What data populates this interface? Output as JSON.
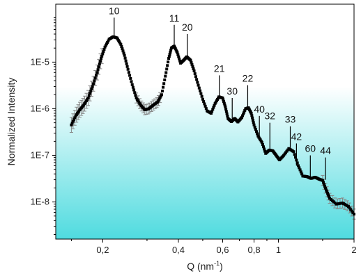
{
  "chart_data": {
    "type": "scatter",
    "title": "",
    "xlabel": "Q (nm",
    "xlabel_sup": "-1",
    "xlabel_close": ")",
    "ylabel": "Normalized Intensity",
    "x_scale": "log",
    "y_scale": "log",
    "xlim": [
      0.13,
      2.0
    ],
    "ylim": [
      1.6e-09,
      0.000175
    ],
    "background_gradient": {
      "top": "#ffffff",
      "bottom": "#4fdbdf"
    },
    "marker_color": "#000000",
    "errorbar_color": "#888888",
    "x_ticks": [
      {
        "value": 0.2,
        "label": "0,2"
      },
      {
        "value": 0.4,
        "label": "0,4"
      },
      {
        "value": 0.6,
        "label": "0,6"
      },
      {
        "value": 0.8,
        "label": "0,8"
      },
      {
        "value": 1.0,
        "label": "1"
      },
      {
        "value": 2.0,
        "label": "2"
      }
    ],
    "y_ticks": [
      {
        "value": 1e-05,
        "label": "1E-5"
      },
      {
        "value": 1e-06,
        "label": "1E-6"
      },
      {
        "value": 1e-07,
        "label": "1E-7"
      },
      {
        "value": 1e-08,
        "label": "1E-8"
      }
    ],
    "curve_points": [
      [
        0.15,
        4.5e-07
      ],
      [
        0.156,
        7e-07
      ],
      [
        0.162,
        9.5e-07
      ],
      [
        0.168,
        1.2e-06
      ],
      [
        0.175,
        1.7e-06
      ],
      [
        0.182,
        3e-06
      ],
      [
        0.19,
        6e-06
      ],
      [
        0.197,
        1.2e-05
      ],
      [
        0.204,
        2.1e-05
      ],
      [
        0.212,
        3.1e-05
      ],
      [
        0.22,
        3.5e-05
      ],
      [
        0.228,
        3.3e-05
      ],
      [
        0.236,
        2.4e-05
      ],
      [
        0.244,
        1.4e-05
      ],
      [
        0.252,
        7e-06
      ],
      [
        0.262,
        3.3e-06
      ],
      [
        0.272,
        1.7e-06
      ],
      [
        0.283,
        1.2e-06
      ],
      [
        0.294,
        9.5e-07
      ],
      [
        0.305,
        1e-06
      ],
      [
        0.318,
        1.2e-06
      ],
      [
        0.331,
        1.4e-06
      ],
      [
        0.343,
        2e-06
      ],
      [
        0.355,
        5e-06
      ],
      [
        0.366,
        1.2e-05
      ],
      [
        0.375,
        2e-05
      ],
      [
        0.385,
        2.2e-05
      ],
      [
        0.396,
        1.6e-05
      ],
      [
        0.408,
        9.5e-06
      ],
      [
        0.42,
        1.1e-05
      ],
      [
        0.432,
        1.3e-05
      ],
      [
        0.447,
        1.1e-05
      ],
      [
        0.462,
        6.5e-06
      ],
      [
        0.48,
        3.2e-06
      ],
      [
        0.5,
        1.6e-06
      ],
      [
        0.52,
        9e-07
      ],
      [
        0.54,
        8e-07
      ],
      [
        0.56,
        1.3e-06
      ],
      [
        0.58,
        1.8e-06
      ],
      [
        0.6,
        1.7e-06
      ],
      [
        0.615,
        1.1e-06
      ],
      [
        0.63,
        6.2e-07
      ],
      [
        0.65,
        5.3e-07
      ],
      [
        0.67,
        6.2e-07
      ],
      [
        0.69,
        5.2e-07
      ],
      [
        0.715,
        6.5e-07
      ],
      [
        0.74,
        1e-06
      ],
      [
        0.76,
        1.05e-06
      ],
      [
        0.78,
        8e-07
      ],
      [
        0.8,
        4.5e-07
      ],
      [
        0.83,
        2.6e-07
      ],
      [
        0.86,
        1.9e-07
      ],
      [
        0.89,
        1.1e-07
      ],
      [
        0.92,
        1.3e-07
      ],
      [
        0.95,
        1.25e-07
      ],
      [
        0.98,
        1e-07
      ],
      [
        1.01,
        8e-08
      ],
      [
        1.05,
        1e-07
      ],
      [
        1.1,
        1.4e-07
      ],
      [
        1.15,
        1.2e-07
      ],
      [
        1.2,
        6e-08
      ],
      [
        1.25,
        3.6e-08
      ],
      [
        1.3,
        3.5e-08
      ],
      [
        1.35,
        3.2e-08
      ],
      [
        1.4,
        3.4e-08
      ],
      [
        1.45,
        3.1e-08
      ],
      [
        1.5,
        2.9e-08
      ],
      [
        1.55,
        1.8e-08
      ],
      [
        1.6,
        1.2e-08
      ],
      [
        1.7,
        9e-09
      ],
      [
        1.8,
        9.5e-09
      ],
      [
        1.9,
        8e-09
      ],
      [
        2.0,
        5.5e-09
      ]
    ],
    "peaks": [
      {
        "label": "10",
        "x": 0.222,
        "y_base": 3.5e-05,
        "y_top": 9e-05
      },
      {
        "label": "11",
        "x": 0.385,
        "y_base": 2.2e-05,
        "y_top": 6.3e-05
      },
      {
        "label": "20",
        "x": 0.434,
        "y_base": 1.35e-05,
        "y_top": 4e-05
      },
      {
        "label": "21",
        "x": 0.582,
        "y_base": 1.85e-06,
        "y_top": 5.2e-06
      },
      {
        "label": "30",
        "x": 0.655,
        "y_base": 5.5e-07,
        "y_top": 1.7e-06
      },
      {
        "label": "22",
        "x": 0.755,
        "y_base": 1.1e-06,
        "y_top": 3.2e-06
      },
      {
        "label": "40",
        "x": 0.84,
        "y_base": 2.2e-07,
        "y_top": 7e-07
      },
      {
        "label": "32",
        "x": 0.925,
        "y_base": 1.35e-07,
        "y_top": 5e-07
      },
      {
        "label": "33",
        "x": 1.115,
        "y_base": 1.45e-07,
        "y_top": 4.2e-07
      },
      {
        "label": "42",
        "x": 1.18,
        "y_base": 6e-08,
        "y_top": 1.8e-07
      },
      {
        "label": "60",
        "x": 1.34,
        "y_base": 3.4e-08,
        "y_top": 1e-07
      },
      {
        "label": "44",
        "x": 1.54,
        "y_base": 3e-08,
        "y_top": 9e-08
      }
    ],
    "errorbar_ranges": [
      [
        0.15,
        0.2
      ],
      [
        0.27,
        0.34
      ],
      [
        1.5,
        2.0
      ]
    ],
    "legend": "none",
    "grid": false
  }
}
